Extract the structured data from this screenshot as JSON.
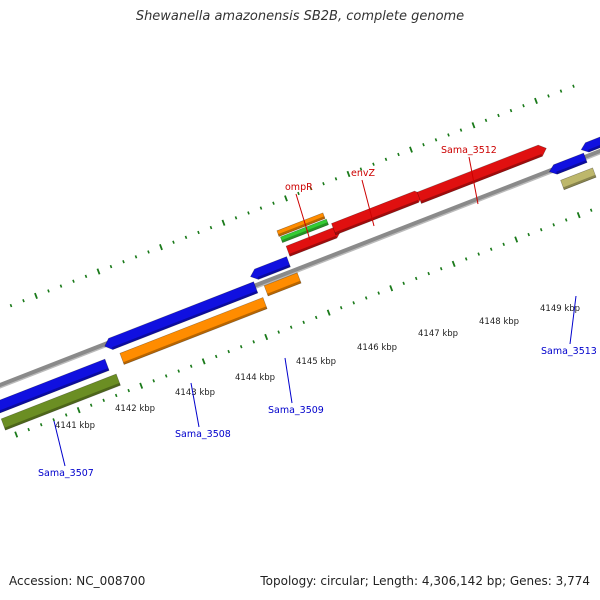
{
  "title": "Shewanella amazonensis SB2B, complete genome",
  "footer": {
    "accession": "Accession: NC_008700",
    "summary": "Topology: circular; Length: 4,306,142 bp; Genes: 3,774"
  },
  "colors": {
    "backbone": "#8a8a8a",
    "tick": "#1a7a1a",
    "cds_blue": "#1010e0",
    "cds_orange": "#ff8c00",
    "cds_red": "#e01010",
    "cds_green_light": "#33cc33",
    "cds_olive": "#6b8e23",
    "cds_khaki": "#bdb76b",
    "label_red": "#cc0000",
    "label_blue": "#0000cc"
  },
  "ticks": [
    {
      "text": "4141 kbp"
    },
    {
      "text": "4142 kbp"
    },
    {
      "text": "4143 kbp"
    },
    {
      "text": "4144 kbp"
    },
    {
      "text": "4145 kbp"
    },
    {
      "text": "4146 kbp"
    },
    {
      "text": "4147 kbp"
    },
    {
      "text": "4148 kbp"
    },
    {
      "text": "4149 kbp"
    }
  ],
  "gene_labels": [
    {
      "text": "ompR",
      "color": "red"
    },
    {
      "text": "envZ",
      "color": "red"
    },
    {
      "text": "Sama_3512",
      "color": "red"
    },
    {
      "text": "Sama_3507",
      "color": "blue"
    },
    {
      "text": "Sama_3508",
      "color": "blue"
    },
    {
      "text": "Sama_3509",
      "color": "blue"
    },
    {
      "text": "Sama_3513",
      "color": "blue"
    }
  ]
}
